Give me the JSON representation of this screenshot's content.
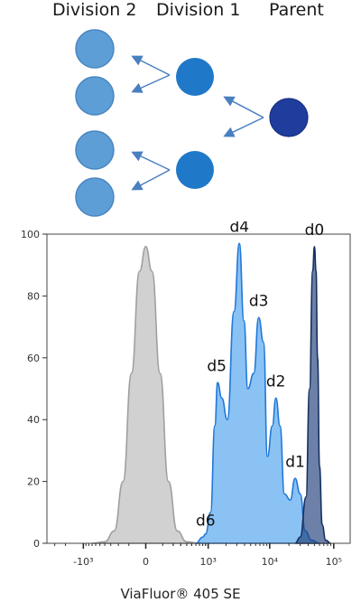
{
  "diagram": {
    "headers": [
      "Division 2",
      "Division 1",
      "Parent"
    ],
    "colors": {
      "division2": "#5e9ed6",
      "division1": "#1f78c8",
      "parent": "#1f3d9c",
      "arrow": "#4a7fc0"
    }
  },
  "chart_data": {
    "type": "area",
    "xlabel": "ViaFluor® 405 SE",
    "ylabel": "",
    "x_scale": "biexponential",
    "ylim": [
      0,
      100
    ],
    "y_ticks": [
      "0",
      "20",
      "40",
      "60",
      "80",
      "100"
    ],
    "x_ticks": [
      "-10³",
      "0",
      "10³",
      "10⁴",
      "10⁵"
    ],
    "x_tick_values": [
      -1000,
      0,
      1000,
      10000,
      100000
    ],
    "series": [
      {
        "color": "#bdbdbd",
        "x": [
          -700,
          -400,
          -250,
          -150,
          -80,
          -30,
          0,
          30,
          80,
          150,
          250,
          400,
          700
        ],
        "values": [
          0,
          0.5,
          4,
          20,
          55,
          88,
          96,
          88,
          55,
          20,
          4,
          0.5,
          0
        ]
      },
      {
        "color": "#5aa8f0",
        "x": [
          600,
          800,
          900,
          1100,
          1300,
          1450,
          1700,
          2100,
          2700,
          3300,
          3900,
          4500,
          5600,
          6700,
          8000,
          9200,
          11000,
          12500,
          14500,
          17000,
          21000,
          25000,
          30000,
          36000,
          45000,
          60000
        ],
        "values": [
          0,
          2,
          3,
          10,
          38,
          52,
          47,
          40,
          75,
          97,
          72,
          50,
          55,
          73,
          65,
          28,
          38,
          47,
          38,
          16,
          14,
          21,
          16,
          4,
          1,
          0
        ]
      },
      {
        "color": "#1f3d7a",
        "x": [
          25000,
          30000,
          37000,
          42000,
          47000,
          50000,
          53000,
          56000,
          60000,
          66000,
          75000,
          90000
        ],
        "values": [
          0,
          2,
          15,
          50,
          88,
          96,
          88,
          60,
          25,
          6,
          1,
          0
        ]
      }
    ],
    "annotations": [
      {
        "text": "d6",
        "x": 900,
        "y": 4
      },
      {
        "text": "d5",
        "x": 1400,
        "y": 54
      },
      {
        "text": "d4",
        "x": 3300,
        "y": 99
      },
      {
        "text": "d3",
        "x": 6700,
        "y": 75
      },
      {
        "text": "d2",
        "x": 12500,
        "y": 49
      },
      {
        "text": "d1",
        "x": 25000,
        "y": 23
      },
      {
        "text": "d0",
        "x": 50000,
        "y": 98
      }
    ]
  }
}
